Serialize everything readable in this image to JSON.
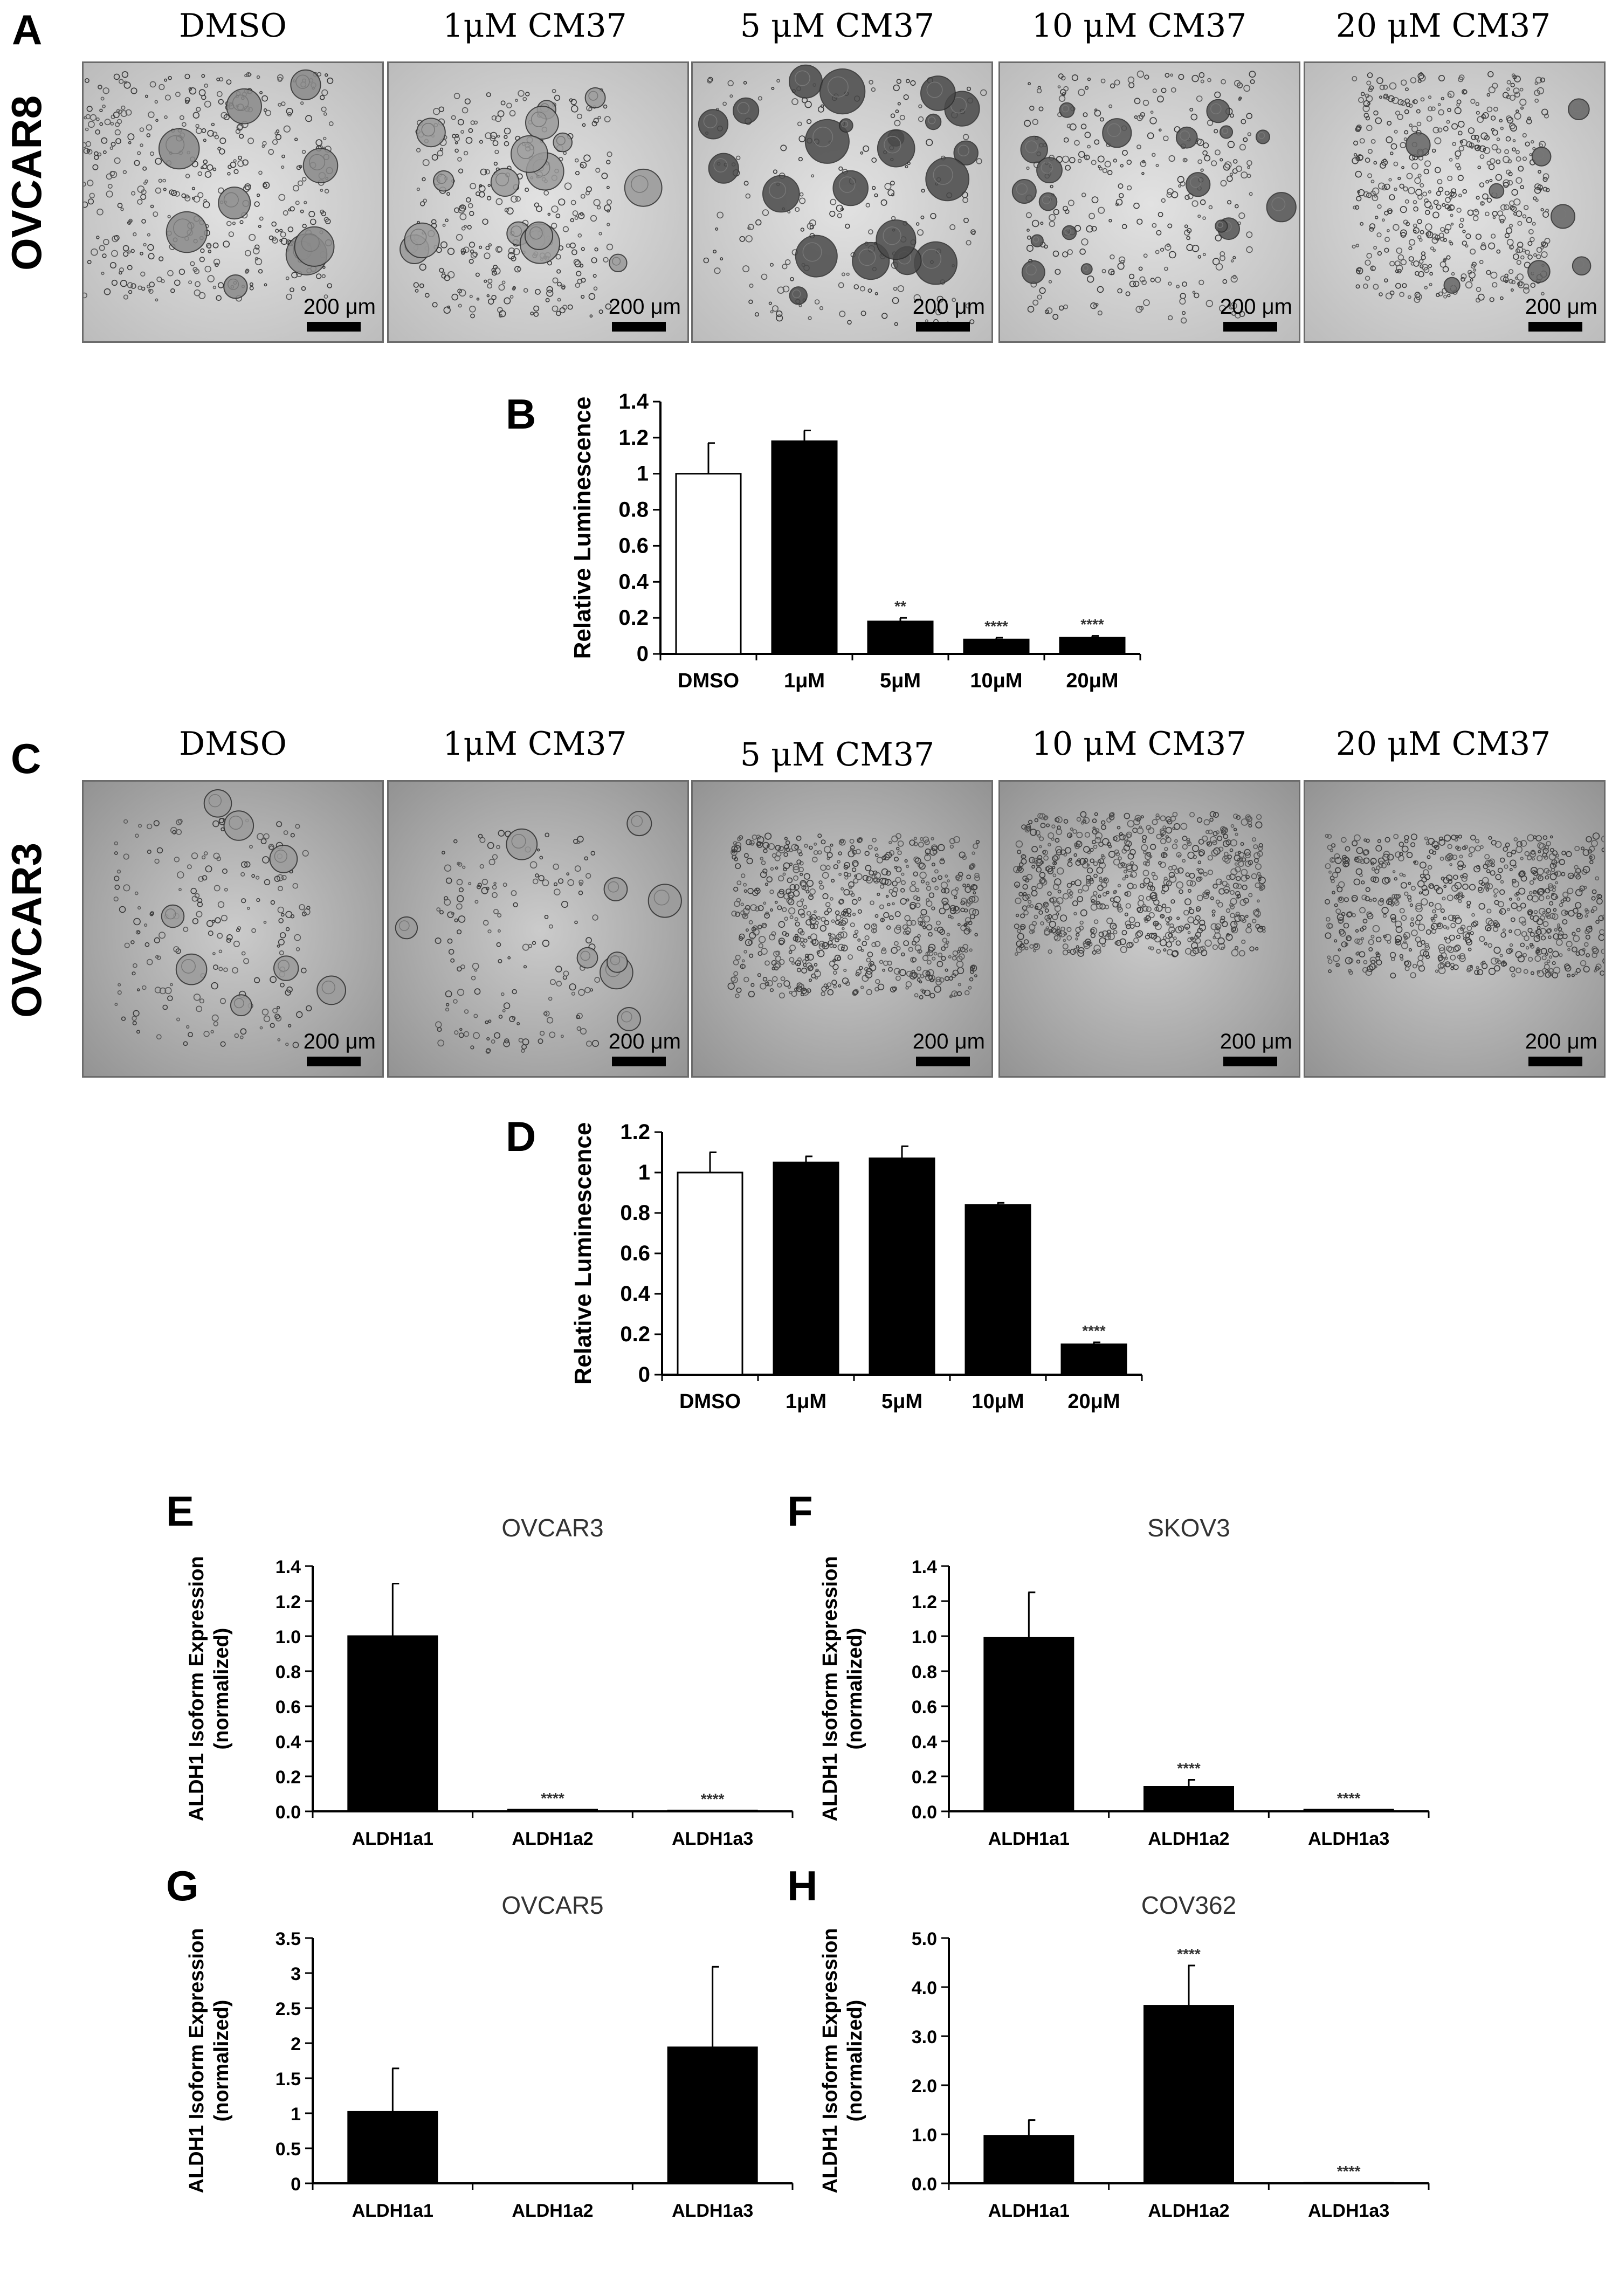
{
  "panels": {
    "A": {
      "letter": "A",
      "row_label": "OVCAR8",
      "conditions": [
        "DMSO",
        "1μM CM37",
        "5 μM CM37",
        "10 μM CM37",
        "20 μM CM37"
      ],
      "scale_bar_label": "200 μm"
    },
    "C": {
      "letter": "C",
      "row_label": "OVCAR3",
      "conditions": [
        "DMSO",
        "1μM CM37",
        "5 μM CM37",
        "10 μM CM37",
        "20 μM CM37"
      ],
      "scale_bar_label": "200 μm"
    }
  },
  "chart_data": [
    {
      "id": "B",
      "letter": "B",
      "type": "bar",
      "title": "",
      "ylabel": "Relative Luminescence",
      "categories": [
        "DMSO",
        "1μM",
        "5μM",
        "10μM",
        "20μM"
      ],
      "values": [
        1.0,
        1.18,
        0.18,
        0.08,
        0.09
      ],
      "errors": [
        0.17,
        0.06,
        0.02,
        0.01,
        0.01
      ],
      "fills": [
        "#ffffff",
        "#000000",
        "#000000",
        "#000000",
        "#000000"
      ],
      "significance": [
        "",
        "",
        "**",
        "****",
        "****"
      ],
      "ylim": [
        0,
        1.4
      ],
      "yticks": [
        "0",
        "0.2",
        "0.4",
        "0.6",
        "0.8",
        "1",
        "1.2",
        "1.4"
      ]
    },
    {
      "id": "D",
      "letter": "D",
      "type": "bar",
      "title": "",
      "ylabel": "Relative Luminescence",
      "categories": [
        "DMSO",
        "1μM",
        "5μM",
        "10μM",
        "20μM"
      ],
      "values": [
        1.0,
        1.05,
        1.07,
        0.84,
        0.15
      ],
      "errors": [
        0.1,
        0.03,
        0.06,
        0.01,
        0.01
      ],
      "fills": [
        "#ffffff",
        "#000000",
        "#000000",
        "#000000",
        "#000000"
      ],
      "significance": [
        "",
        "",
        "",
        "",
        "****"
      ],
      "ylim": [
        0,
        1.2
      ],
      "yticks": [
        "0",
        "0.2",
        "0.4",
        "0.6",
        "0.8",
        "1",
        "1.2"
      ]
    },
    {
      "id": "E",
      "letter": "E",
      "type": "bar",
      "title": "OVCAR3",
      "ylabel": "ALDH1 Isoform Expression\n(normalized)",
      "categories": [
        "ALDH1a1",
        "ALDH1a2",
        "ALDH1a3"
      ],
      "values": [
        1.0,
        0.01,
        0.005
      ],
      "errors": [
        0.3,
        0,
        0
      ],
      "significance": [
        "",
        "****",
        "****"
      ],
      "ylim": [
        0,
        1.4
      ],
      "yticks": [
        "0.0",
        "0.2",
        "0.4",
        "0.6",
        "0.8",
        "1.0",
        "1.2",
        "1.4"
      ]
    },
    {
      "id": "F",
      "letter": "F",
      "type": "bar",
      "title": "SKOV3",
      "ylabel": "ALDH1 Isoform Expression\n(normalized)",
      "categories": [
        "ALDH1a1",
        "ALDH1a2",
        "ALDH1a3"
      ],
      "values": [
        0.99,
        0.14,
        0.01
      ],
      "errors": [
        0.26,
        0.04,
        0
      ],
      "significance": [
        "",
        "****",
        "****"
      ],
      "ylim": [
        0,
        1.4
      ],
      "yticks": [
        "0.0",
        "0.2",
        "0.4",
        "0.6",
        "0.8",
        "1.0",
        "1.2",
        "1.4"
      ]
    },
    {
      "id": "G",
      "letter": "G",
      "type": "bar",
      "title": "OVCAR5",
      "ylabel": "ALDH1 Isoform Expression\n(normalized)",
      "categories": [
        "ALDH1a1",
        "ALDH1a2",
        "ALDH1a3"
      ],
      "values": [
        1.02,
        0,
        1.94
      ],
      "errors": [
        0.62,
        0,
        1.15
      ],
      "significance": [
        "",
        "",
        ""
      ],
      "ylim": [
        0,
        3.5
      ],
      "yticks": [
        "0",
        "0.5",
        "1",
        "1.5",
        "2",
        "2.5",
        "3",
        "3.5"
      ]
    },
    {
      "id": "H",
      "letter": "H",
      "type": "bar",
      "title": "COV362",
      "ylabel": "ALDH1 Isoform Expression\n(normalized)",
      "categories": [
        "ALDH1a1",
        "ALDH1a2",
        "ALDH1a3"
      ],
      "values": [
        0.97,
        3.62,
        0.01
      ],
      "errors": [
        0.32,
        0.82,
        0
      ],
      "significance": [
        "",
        "****",
        "****"
      ],
      "ylim": [
        0,
        5.0
      ],
      "yticks": [
        "0.0",
        "1.0",
        "2.0",
        "3.0",
        "4.0",
        "5.0"
      ]
    }
  ]
}
